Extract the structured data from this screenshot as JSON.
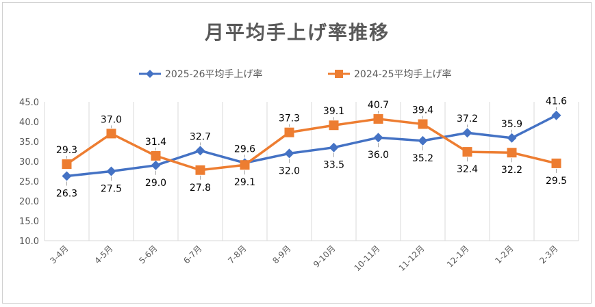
{
  "chart_data": {
    "type": "line",
    "title": "月平均手上げ率推移",
    "categories": [
      "3-4月",
      "4-5月",
      "5-6月",
      "6-7月",
      "7-8月",
      "8-9月",
      "9-10月",
      "10-11月",
      "11-12月",
      "12-1月",
      "1-2月",
      "2-3月"
    ],
    "series": [
      {
        "name": "2025-26平均手上げ率",
        "color": "#4472C4",
        "marker": "diamond",
        "values": [
          26.3,
          27.5,
          29.0,
          32.7,
          29.6,
          32.0,
          33.5,
          36.0,
          35.2,
          37.2,
          35.9,
          41.6
        ],
        "labels": [
          "26.3",
          "27.5",
          "29.0",
          "32.7",
          "29.6",
          "32.0",
          "33.5",
          "36.0",
          "35.2",
          "37.2",
          "35.9",
          "41.6"
        ]
      },
      {
        "name": "2024-25平均手上げ率",
        "color": "#ED7D31",
        "marker": "square",
        "values": [
          29.3,
          37.0,
          31.4,
          27.8,
          29.1,
          37.3,
          39.1,
          40.7,
          39.4,
          32.4,
          32.2,
          29.5
        ],
        "labels": [
          "29.3",
          "37.0",
          "31.4",
          "27.8",
          "29.1",
          "37.3",
          "39.1",
          "40.7",
          "39.4",
          "32.4",
          "32.2",
          "29.5"
        ]
      }
    ],
    "ylim": [
      10.0,
      45.0
    ],
    "yticks": [
      "10.0",
      "15.0",
      "20.0",
      "25.0",
      "30.0",
      "35.0",
      "40.0",
      "45.0"
    ],
    "grid": "vertical",
    "legend": "top"
  }
}
